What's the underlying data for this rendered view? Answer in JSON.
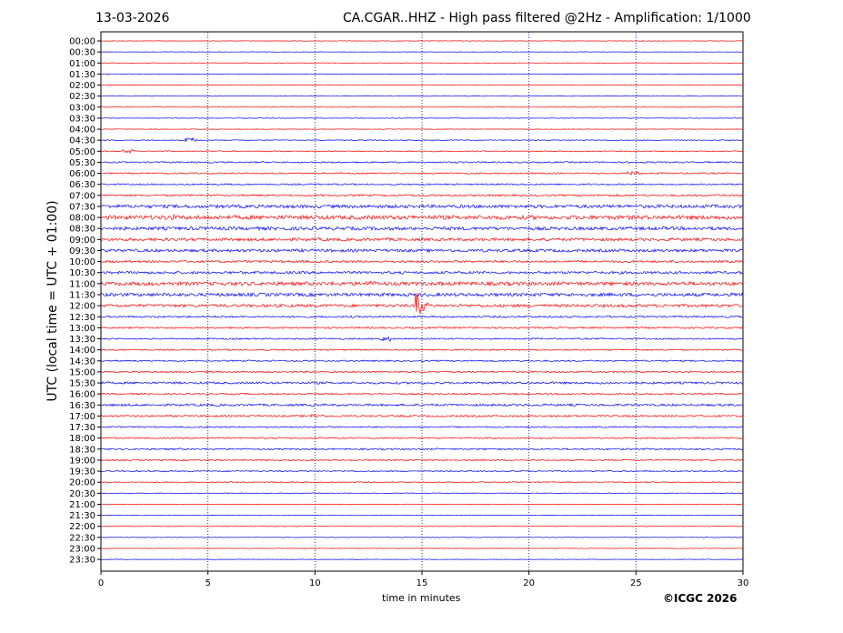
{
  "header": {
    "date": "13-03-2026",
    "title": "CA.CGAR..HHZ - High pass filtered @2Hz - Amplification: 1/1000"
  },
  "footer": {
    "copyright": "©ICGC 2026"
  },
  "chart_data": {
    "type": "line",
    "title": "CA.CGAR..HHZ - High pass filtered @2Hz - Amplification: 1/1000",
    "xlabel": "time in minutes",
    "ylabel": "UTC (local time = UTC + 01:00)",
    "xlim": [
      0,
      30
    ],
    "x_ticks": [
      "0",
      "5",
      "10",
      "15",
      "20",
      "25",
      "30"
    ],
    "vertical_gridlines_minutes": [
      5,
      10,
      15,
      20,
      25
    ],
    "grid": "vertical dotted",
    "row_labels": [
      "00:00",
      "00:30",
      "01:00",
      "01:30",
      "02:00",
      "02:30",
      "03:00",
      "03:30",
      "04:00",
      "04:30",
      "05:00",
      "05:30",
      "06:00",
      "06:30",
      "07:00",
      "07:30",
      "08:00",
      "08:30",
      "09:00",
      "09:30",
      "10:00",
      "10:30",
      "11:00",
      "11:30",
      "12:00",
      "12:30",
      "13:00",
      "13:30",
      "14:00",
      "14:30",
      "15:00",
      "15:30",
      "16:00",
      "16:30",
      "17:00",
      "17:30",
      "18:00",
      "18:30",
      "19:00",
      "19:30",
      "20:00",
      "20:30",
      "21:00",
      "21:30",
      "22:00",
      "22:30",
      "23:00",
      "23:30"
    ],
    "row_colors": [
      "#ff0000",
      "#0000ff"
    ],
    "row_noise_amplitude": [
      0.3,
      0.2,
      0.3,
      0.3,
      0.3,
      0.3,
      0.3,
      0.3,
      0.3,
      0.5,
      0.6,
      0.8,
      0.8,
      0.8,
      1.0,
      1.8,
      2.2,
      1.8,
      1.6,
      1.6,
      1.2,
      1.4,
      2.0,
      1.8,
      1.6,
      1.0,
      0.9,
      0.8,
      0.8,
      0.8,
      0.9,
      1.2,
      0.9,
      1.2,
      1.0,
      0.8,
      0.8,
      0.9,
      0.8,
      0.7,
      0.6,
      0.4,
      0.3,
      0.3,
      0.3,
      0.3,
      0.3,
      0.3
    ],
    "events": [
      {
        "row": "04:30",
        "minute": 4.2,
        "amplitude": 2.5
      },
      {
        "row": "05:00",
        "minute": 1.3,
        "amplitude": 2
      },
      {
        "row": "06:00",
        "minute": 24.9,
        "amplitude": 2
      },
      {
        "row": "08:00",
        "minute": 3.2,
        "amplitude": 3
      },
      {
        "row": "11:00",
        "minute": 12.6,
        "amplitude": 3
      },
      {
        "row": "12:00",
        "minute": 14.7,
        "amplitude": 28
      },
      {
        "row": "13:30",
        "minute": 13.3,
        "amplitude": 2.5
      },
      {
        "row": "17:00",
        "minute": 10.1,
        "amplitude": 2.5
      }
    ]
  }
}
